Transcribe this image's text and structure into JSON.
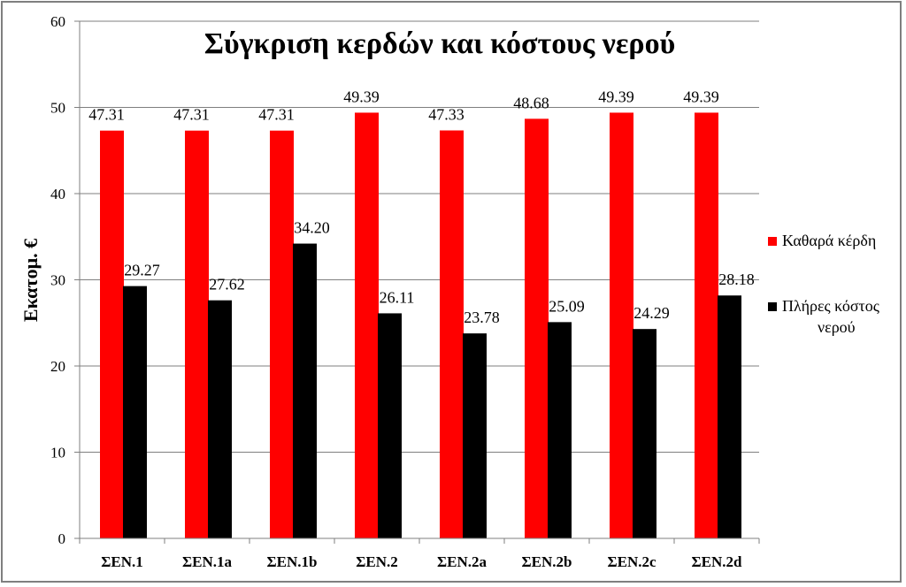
{
  "chart_data": {
    "type": "bar",
    "title": "Σύγκριση κερδών και κόστους νερού",
    "ylabel": "Εκατομ. €",
    "xlabel": "",
    "ylim": [
      0,
      60
    ],
    "yticks": [
      0,
      10,
      20,
      30,
      40,
      50,
      60
    ],
    "grid": true,
    "legend_position": "right",
    "categories": [
      "ΣΕΝ.1",
      "ΣΕΝ.1a",
      "ΣΕΝ.1b",
      "ΣΕΝ.2",
      "ΣΕΝ.2a",
      "ΣΕΝ.2b",
      "ΣΕΝ.2c",
      "ΣΕΝ.2d"
    ],
    "series": [
      {
        "name": "Καθαρά κέρδη",
        "color": "#ff0000",
        "values": [
          47.31,
          47.31,
          47.31,
          49.39,
          47.33,
          48.68,
          49.39,
          49.39
        ],
        "labels": [
          "47.31",
          "47.31",
          "47.31",
          "49.39",
          "47.33",
          "48.68",
          "49.39",
          "49.39"
        ]
      },
      {
        "name": "Πλήρες κόστος νερού",
        "name_lines": [
          "Πλήρες κόστος",
          "νερού"
        ],
        "color": "#000000",
        "values": [
          29.27,
          27.62,
          34.2,
          26.11,
          23.78,
          25.09,
          24.29,
          28.18
        ],
        "labels": [
          "29.27",
          "27.62",
          "34.20",
          "26.11",
          "23.78",
          "25.09",
          "24.29",
          "28.18"
        ]
      }
    ]
  }
}
